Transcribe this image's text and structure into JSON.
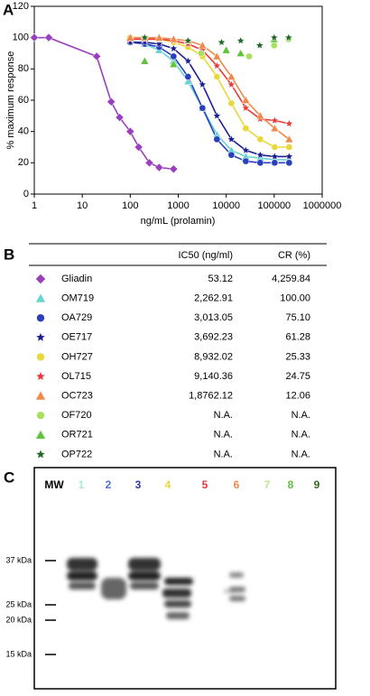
{
  "chart_data": {
    "type": "line",
    "panel_label": "A",
    "x_label": "ng/mL (prolamin)",
    "y_label": "% maximum response",
    "xscale": "log",
    "xlim": [
      1,
      1000000
    ],
    "xticks": [
      1,
      10,
      100,
      1000,
      10000,
      100000,
      1000000
    ],
    "ylim": [
      0,
      120
    ],
    "yticks": [
      0,
      20,
      40,
      60,
      80,
      100,
      120
    ],
    "series": [
      {
        "name": "Gliadin",
        "color": "#9b3fbf",
        "marker": "diamond",
        "line": true,
        "x": [
          1,
          2,
          20,
          40,
          60,
          100,
          150,
          250,
          400,
          800
        ],
        "values": [
          100,
          100,
          88,
          59,
          49,
          40,
          30,
          20,
          17,
          16
        ]
      },
      {
        "name": "OM719",
        "color": "#66d4d0",
        "marker": "triangle",
        "line": true,
        "x": [
          100,
          200,
          400,
          800,
          1600,
          3200,
          6400,
          12800,
          25600,
          51200,
          102400,
          204800
        ],
        "values": [
          98,
          96,
          92,
          85,
          72,
          55,
          38,
          28,
          24,
          23,
          22,
          22
        ]
      },
      {
        "name": "OA729",
        "color": "#2a3fbf",
        "marker": "circle",
        "line": true,
        "x": [
          100,
          200,
          400,
          800,
          1600,
          3200,
          6400,
          12800,
          25600,
          51200,
          102400,
          204800
        ],
        "values": [
          97,
          96,
          94,
          88,
          75,
          55,
          35,
          25,
          21,
          20,
          20,
          20
        ]
      },
      {
        "name": "OE717",
        "color": "#1a1f8f",
        "marker": "star",
        "line": true,
        "x": [
          100,
          200,
          400,
          800,
          1600,
          3200,
          6400,
          12800,
          25600,
          51200,
          102400,
          204800
        ],
        "values": [
          97,
          97,
          96,
          93,
          85,
          70,
          50,
          35,
          28,
          25,
          24,
          24
        ]
      },
      {
        "name": "OH727",
        "color": "#e8d83a",
        "marker": "circle",
        "line": true,
        "x": [
          100,
          200,
          400,
          800,
          1600,
          3200,
          6400,
          12800,
          25600,
          51200,
          102400,
          204800
        ],
        "values": [
          100,
          100,
          99,
          97,
          94,
          88,
          75,
          58,
          42,
          35,
          30,
          30
        ]
      },
      {
        "name": "OL715",
        "color": "#e83a3a",
        "marker": "star",
        "line": true,
        "x": [
          100,
          200,
          400,
          800,
          1600,
          3200,
          6400,
          12800,
          25600,
          51200,
          102400,
          204800
        ],
        "values": [
          99,
          99,
          99,
          98,
          96,
          92,
          82,
          70,
          55,
          48,
          47,
          45
        ]
      },
      {
        "name": "OC723",
        "color": "#f08a4a",
        "marker": "triangle",
        "line": true,
        "x": [
          100,
          200,
          400,
          800,
          1600,
          3200,
          6400,
          12800,
          25600,
          51200,
          102400,
          204800
        ],
        "values": [
          100,
          100,
          100,
          99,
          98,
          95,
          88,
          75,
          60,
          50,
          42,
          35
        ]
      },
      {
        "name": "OF720",
        "color": "#a8e060",
        "marker": "circle",
        "line": false,
        "x": [
          3000,
          30000,
          100000,
          200000
        ],
        "values": [
          90,
          88,
          95,
          99
        ]
      },
      {
        "name": "OR721",
        "color": "#5ec43a",
        "marker": "triangle",
        "line": false,
        "x": [
          200,
          800,
          10000,
          20000,
          100000
        ],
        "values": [
          85,
          83,
          92,
          90,
          99
        ]
      },
      {
        "name": "OP722",
        "color": "#1f6b2a",
        "marker": "star",
        "line": false,
        "x": [
          200,
          1600,
          8000,
          20000,
          50000,
          100000,
          200000
        ],
        "values": [
          100,
          98,
          97,
          98,
          95,
          100,
          100
        ]
      }
    ]
  },
  "table": {
    "panel_label": "B",
    "columns": [
      "IC50 (ng/ml)",
      "CR (%)"
    ],
    "rows": [
      [
        "Gliadin",
        "53.12",
        "4,259.84"
      ],
      [
        "OM719",
        "2,262.91",
        "100.00"
      ],
      [
        "OA729",
        "3,013.05",
        "75.10"
      ],
      [
        "OE717",
        "3,692.23",
        "61.28"
      ],
      [
        "OH727",
        "8,932.02",
        "25.33"
      ],
      [
        "OL715",
        "9,140.36",
        "24.75"
      ],
      [
        "OC723",
        "1,8762.12",
        "12.06"
      ],
      [
        "OF720",
        "N.A.",
        "N.A."
      ],
      [
        "OR721",
        "N.A.",
        "N.A."
      ],
      [
        "OP722",
        "N.A.",
        "N.A."
      ]
    ]
  },
  "gel": {
    "panel_label": "C",
    "lanes": [
      "MW",
      "1",
      "2",
      "3",
      "4",
      "5",
      "6",
      "7",
      "8",
      "9"
    ],
    "lane_colors": [
      "#000000",
      "#a8e8e0",
      "#4a6fd0",
      "#2a3aa0",
      "#e8d83a",
      "#e83a3a",
      "#f08a4a",
      "#b8e890",
      "#5ec43a",
      "#2f6b1a"
    ],
    "markers": [
      "37 kDa",
      "25 kDa",
      "20 kDa",
      "15 kDa"
    ]
  }
}
